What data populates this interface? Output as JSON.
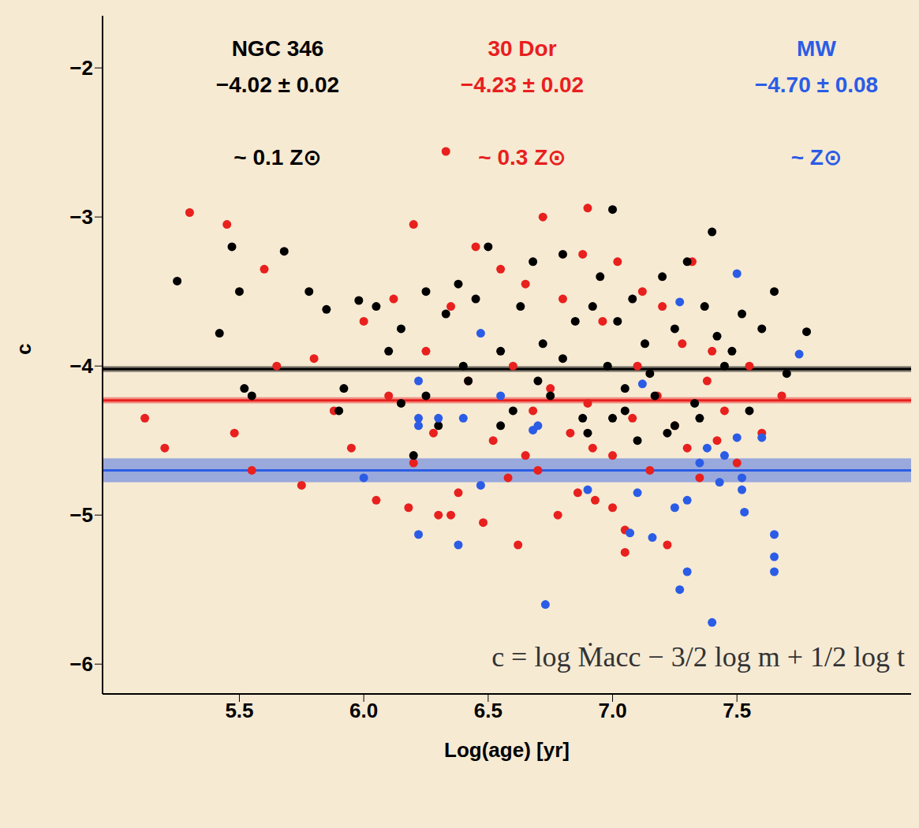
{
  "chart_data": {
    "type": "scatter",
    "x_label": "Log(age) [yr]",
    "y_label": "c",
    "annotations": [
      "c = log Ṁacc − 3/2 log m + 1/2 log t"
    ],
    "xlim": [
      4.95,
      8.2
    ],
    "xticks": [
      5.5,
      {
        "value": 6,
        "label": "6.0"
      },
      6.5,
      {
        "value": 7,
        "label": "7.0"
      },
      7.5
    ],
    "ylim": [
      -6.2,
      -1.65
    ],
    "yticks": [
      {
        "value": -6,
        "label": "−6"
      },
      {
        "value": -5,
        "label": "−5"
      },
      {
        "value": -4,
        "label": "−4"
      },
      {
        "value": -3,
        "label": "−3"
      },
      {
        "value": -2,
        "label": "−2"
      }
    ],
    "grid": false,
    "marker": "circle",
    "series": [
      {
        "name": "30 Dor",
        "color": "#e8201e",
        "mean": -4.23,
        "mean_err": 0.02,
        "mean_label": "−4.23 ± 0.02",
        "metallicity": "~ 0.3 Z⊙",
        "x": [
          5.12,
          5.2,
          5.3,
          5.45,
          5.48,
          5.55,
          5.6,
          5.65,
          5.75,
          5.8,
          5.88,
          5.95,
          6.0,
          6.05,
          6.1,
          6.12,
          6.18,
          6.2,
          6.25,
          6.28,
          6.3,
          6.35,
          6.38,
          6.42,
          6.45,
          6.48,
          6.52,
          6.55,
          6.58,
          6.6,
          6.62,
          6.65,
          6.68,
          6.7,
          6.72,
          6.75,
          6.78,
          6.8,
          6.83,
          6.86,
          6.88,
          6.9,
          6.93,
          6.96,
          7.0,
          7.02,
          7.05,
          7.08,
          7.1,
          7.12,
          7.15,
          7.18,
          7.2,
          7.22,
          7.25,
          7.28,
          7.3,
          7.32,
          7.35,
          7.38,
          7.4,
          7.42,
          7.45,
          7.5,
          7.55,
          7.6,
          7.68,
          6.35,
          6.33,
          6.9,
          7.0,
          7.05,
          6.65,
          6.2,
          6.92
        ],
        "values": [
          -4.35,
          -4.55,
          -2.97,
          -3.05,
          -4.45,
          -4.7,
          -3.35,
          -4.0,
          -4.8,
          -3.95,
          -4.3,
          -4.55,
          -3.7,
          -4.9,
          -4.2,
          -3.55,
          -4.95,
          -4.65,
          -3.9,
          -4.45,
          -5.0,
          -3.6,
          -4.85,
          -4.1,
          -3.2,
          -5.05,
          -4.5,
          -3.35,
          -4.75,
          -4.0,
          -5.2,
          -3.45,
          -4.3,
          -4.7,
          -3.0,
          -4.15,
          -5.0,
          -3.55,
          -4.45,
          -4.85,
          -3.25,
          -4.25,
          -4.9,
          -3.7,
          -4.6,
          -3.3,
          -5.1,
          -4.35,
          -4.0,
          -3.5,
          -4.7,
          -4.2,
          -3.6,
          -5.2,
          -4.4,
          -3.85,
          -4.55,
          -3.3,
          -4.75,
          -4.1,
          -3.9,
          -4.5,
          -4.3,
          -4.65,
          -4.0,
          -4.45,
          -4.2,
          -5.0,
          -2.56,
          -2.94,
          -4.95,
          -5.25,
          -4.6,
          -3.05,
          -4.55
        ]
      },
      {
        "name": "NGC 346",
        "color": "#000000",
        "mean": -4.02,
        "mean_err": 0.02,
        "mean_label": "−4.02 ± 0.02",
        "metallicity": "~ 0.1 Z⊙",
        "x": [
          5.25,
          5.42,
          5.47,
          5.5,
          5.52,
          5.55,
          5.68,
          5.78,
          5.85,
          5.92,
          5.98,
          6.05,
          6.1,
          6.15,
          6.2,
          6.25,
          6.3,
          6.33,
          6.38,
          6.42,
          6.45,
          6.5,
          6.55,
          6.6,
          6.63,
          6.68,
          6.72,
          6.75,
          6.8,
          6.85,
          6.88,
          6.92,
          6.95,
          6.98,
          7.0,
          7.02,
          7.05,
          7.08,
          7.1,
          7.13,
          7.17,
          7.2,
          7.22,
          7.25,
          7.3,
          7.33,
          7.37,
          7.4,
          7.45,
          7.48,
          7.52,
          7.55,
          7.6,
          7.65,
          7.7,
          7.78,
          6.25,
          6.55,
          6.9,
          7.15,
          7.35,
          6.4,
          6.8,
          7.05,
          7.42,
          5.9,
          6.15,
          6.7,
          7.0,
          7.25
        ],
        "values": [
          -3.43,
          -3.78,
          -3.2,
          -3.5,
          -4.15,
          -4.2,
          -3.23,
          -3.5,
          -3.62,
          -4.15,
          -3.56,
          -3.6,
          -3.9,
          -3.75,
          -4.6,
          -3.5,
          -4.4,
          -3.65,
          -3.45,
          -4.1,
          -3.55,
          -3.2,
          -3.9,
          -4.3,
          -3.6,
          -3.3,
          -3.85,
          -4.2,
          -3.25,
          -3.7,
          -4.35,
          -3.6,
          -3.4,
          -4.0,
          -2.95,
          -3.7,
          -4.3,
          -3.55,
          -4.5,
          -3.85,
          -4.2,
          -3.4,
          -4.45,
          -3.75,
          -3.3,
          -4.25,
          -3.6,
          -3.1,
          -4.0,
          -3.9,
          -3.65,
          -4.3,
          -3.75,
          -3.5,
          -4.05,
          -3.77,
          -4.2,
          -4.4,
          -4.45,
          -4.05,
          -4.35,
          -4.0,
          -3.95,
          -4.15,
          -3.8,
          -4.3,
          -4.25,
          -4.1,
          -4.35,
          -4.4
        ]
      },
      {
        "name": "MW",
        "color": "#2b5ce6",
        "mean": -4.7,
        "mean_err": 0.08,
        "mean_label": "−4.70 ± 0.08",
        "metallicity": "~ Z⊙",
        "x": [
          6.0,
          6.22,
          6.22,
          6.22,
          6.22,
          6.3,
          6.38,
          6.4,
          6.47,
          6.47,
          6.55,
          6.68,
          6.7,
          6.73,
          6.9,
          7.07,
          7.1,
          7.12,
          7.16,
          7.25,
          7.27,
          7.27,
          7.3,
          7.3,
          7.35,
          7.38,
          7.4,
          7.43,
          7.45,
          7.5,
          7.5,
          7.52,
          7.52,
          7.53,
          7.6,
          7.65,
          7.65,
          7.65,
          7.75
        ],
        "values": [
          -4.75,
          -4.1,
          -4.35,
          -4.4,
          -5.13,
          -4.35,
          -5.2,
          -4.35,
          -3.78,
          -4.8,
          -4.2,
          -4.43,
          -4.4,
          -5.6,
          -4.83,
          -5.12,
          -4.85,
          -4.12,
          -5.15,
          -4.95,
          -3.57,
          -5.5,
          -5.38,
          -4.9,
          -4.65,
          -4.55,
          -5.72,
          -4.78,
          -4.6,
          -3.38,
          -4.48,
          -4.75,
          -4.83,
          -4.98,
          -4.48,
          -5.13,
          -5.28,
          -5.38,
          -3.92
        ]
      }
    ]
  }
}
